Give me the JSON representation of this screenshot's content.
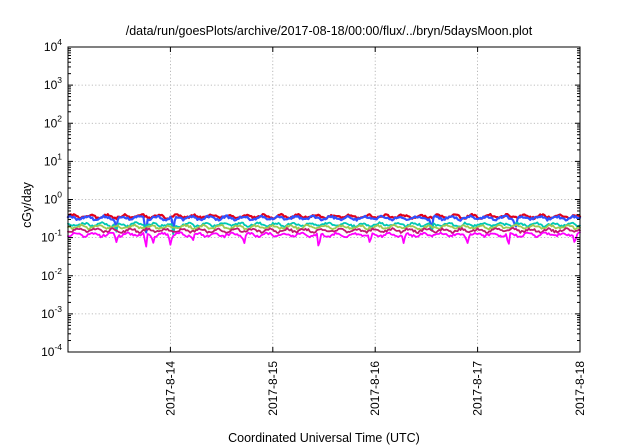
{
  "chart_data": {
    "type": "line",
    "title": "/data/run/goesPlots/archive/2017-08-18/00:00/flux/../bryn/5daysMoon.plot",
    "xlabel": "Coordinated Universal Time (UTC)",
    "ylabel": "cGy/day",
    "yscale": "log",
    "ylim": [
      0.0001,
      10000
    ],
    "y_ticks": [
      {
        "base": "10",
        "exp": "-4",
        "value": 0.0001
      },
      {
        "base": "10",
        "exp": "-3",
        "value": 0.001
      },
      {
        "base": "10",
        "exp": "-2",
        "value": 0.01
      },
      {
        "base": "10",
        "exp": "-1",
        "value": 0.1
      },
      {
        "base": "10",
        "exp": "0",
        "value": 1
      },
      {
        "base": "10",
        "exp": "1",
        "value": 10
      },
      {
        "base": "10",
        "exp": "2",
        "value": 100
      },
      {
        "base": "10",
        "exp": "3",
        "value": 1000
      },
      {
        "base": "10",
        "exp": "4",
        "value": 10000
      }
    ],
    "xlim": [
      "2017-08-13 00:00",
      "2017-08-18 00:00"
    ],
    "x_ticks": [
      "2017-8-14",
      "2017-8-15",
      "2017-8-16",
      "2017-8-17",
      "2017-8-18"
    ],
    "grid": true,
    "legend": "none",
    "series": [
      {
        "color": "#e0001a",
        "level": 0.36,
        "dips": []
      },
      {
        "color": "#3050ff",
        "level": 0.33,
        "dips": [
          [
            0.47,
            0.17
          ],
          [
            0.76,
            0.12
          ],
          [
            1.03,
            0.13
          ],
          [
            3.55,
            0.15
          ],
          [
            4.37,
            0.17
          ]
        ]
      },
      {
        "color": "#00c8b4",
        "level": 0.22,
        "dips": [
          [
            0.47,
            0.14
          ],
          [
            3.55,
            0.13
          ],
          [
            1.03,
            0.12
          ]
        ]
      },
      {
        "color": "#a0c850",
        "level": 0.19,
        "dips": []
      },
      {
        "color": "#c01870",
        "level": 0.155,
        "dips": []
      },
      {
        "color": "#ff00ff",
        "level": 0.12,
        "dips": [
          [
            0.47,
            0.075
          ],
          [
            0.76,
            0.05
          ],
          [
            0.83,
            0.07
          ],
          [
            1.0,
            0.065
          ],
          [
            1.22,
            0.085
          ],
          [
            1.72,
            0.07
          ],
          [
            2.45,
            0.045
          ],
          [
            2.95,
            0.065
          ],
          [
            3.28,
            0.07
          ],
          [
            3.9,
            0.07
          ],
          [
            4.3,
            0.055
          ],
          [
            4.95,
            0.07
          ]
        ]
      }
    ]
  }
}
